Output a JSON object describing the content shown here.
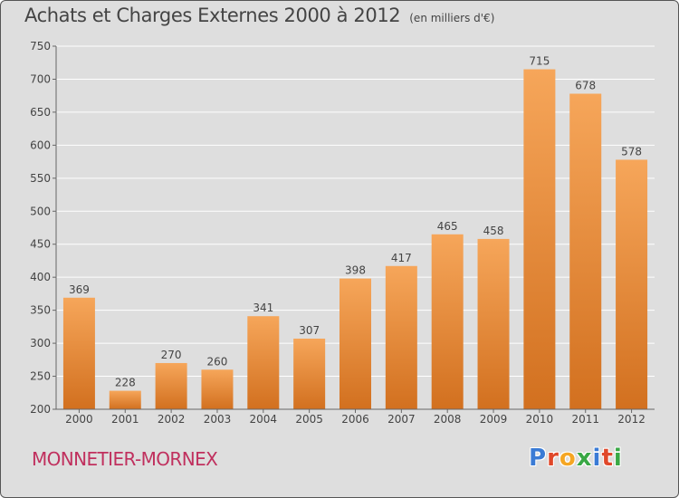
{
  "header": {
    "title": "Achats et Charges Externes 2000 à 2012",
    "unit": "(en milliers d'€)"
  },
  "footer": {
    "commune": "MONNETIER-MORNEX"
  },
  "brand": {
    "letters": [
      {
        "ch": "P",
        "color": "#3a7bd5"
      },
      {
        "ch": "r",
        "color": "#e0482a"
      },
      {
        "ch": "o",
        "color": "#f5a623"
      },
      {
        "ch": "x",
        "color": "#39a845"
      },
      {
        "ch": "i",
        "color": "#3a7bd5"
      },
      {
        "ch": "t",
        "color": "#e0482a"
      },
      {
        "ch": "i",
        "color": "#39a845"
      }
    ]
  },
  "chart_data": {
    "type": "bar",
    "title": "Achats et Charges Externes 2000 à 2012",
    "categories": [
      "2000",
      "2001",
      "2002",
      "2003",
      "2004",
      "2005",
      "2006",
      "2007",
      "2008",
      "2009",
      "2010",
      "2011",
      "2012"
    ],
    "values": [
      369,
      228,
      270,
      260,
      341,
      307,
      398,
      417,
      465,
      458,
      715,
      678,
      578
    ],
    "ylim": [
      200,
      750
    ],
    "yticks": [
      200,
      250,
      300,
      350,
      400,
      450,
      500,
      550,
      600,
      650,
      700,
      750
    ],
    "grid": true,
    "colors": {
      "bar_top": "#f6a65a",
      "bar_bottom": "#d2701f",
      "grid": "#ffffff",
      "text": "#444444"
    }
  }
}
